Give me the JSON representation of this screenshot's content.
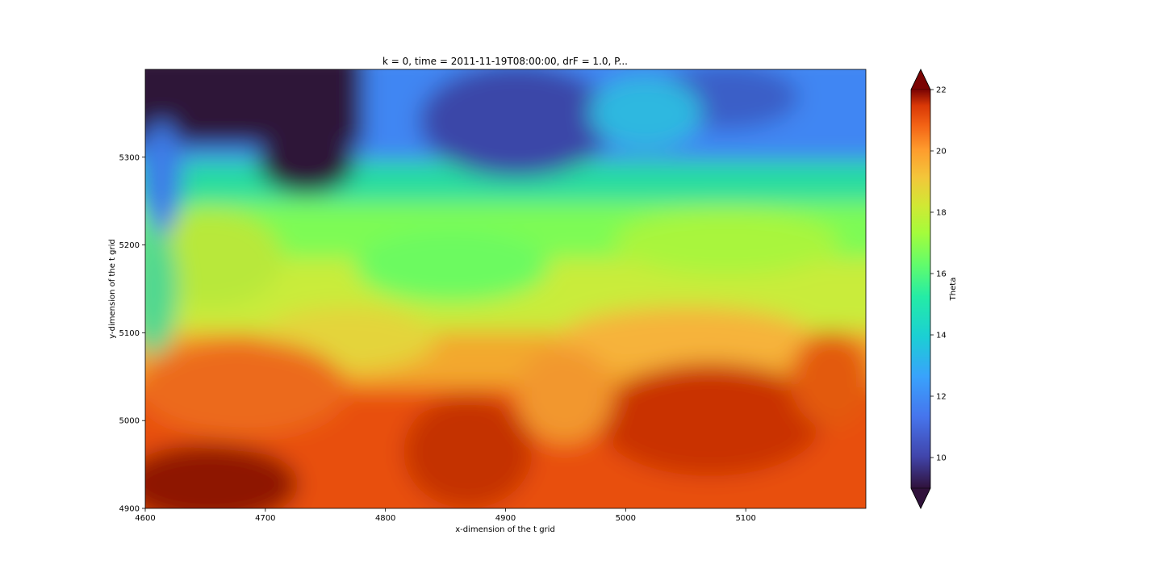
{
  "chart_data": {
    "type": "heatmap",
    "title": "k = 0, time = 2011-11-19T08:00:00, drF = 1.0, P...",
    "xlabel": "x-dimension of the t grid",
    "ylabel": "y-dimension of the t grid",
    "xlim": [
      4600,
      5200
    ],
    "ylim": [
      4900,
      5400
    ],
    "x_ticks": [
      4600,
      4700,
      4800,
      4900,
      5000,
      5100
    ],
    "y_ticks": [
      4900,
      5000,
      5100,
      5200,
      5300
    ],
    "colormap": "turbo",
    "colorbar": {
      "label": "Theta",
      "vmin": 9,
      "vmax": 22,
      "ticks": [
        10,
        12,
        14,
        16,
        18,
        20,
        22
      ],
      "extend": "both"
    },
    "field_summary": [
      {
        "region": "top-left (x 4600-4780, y 5300-5400)",
        "value": 9
      },
      {
        "region": "upper band (y 5250-5400)",
        "value": 11
      },
      {
        "region": "middle band (y 5150-5250)",
        "value": 15
      },
      {
        "region": "lower-middle band (y 5050-5150)",
        "value": 17.5
      },
      {
        "region": "bottom band (y 4900-5050)",
        "value": 20.5
      }
    ]
  }
}
